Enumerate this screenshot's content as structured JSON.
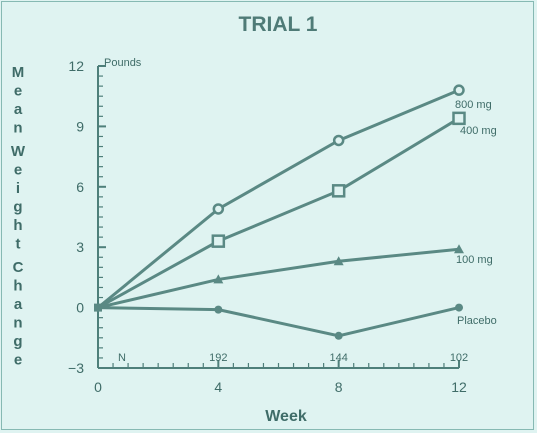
{
  "chart_data": {
    "type": "line",
    "title": "TRIAL 1",
    "xlabel": "Week",
    "ylabel": "Mean Weight Change",
    "yunit": "Pounds",
    "x": [
      0,
      4,
      8,
      12
    ],
    "xlim": [
      0,
      12
    ],
    "ylim": [
      -3,
      12
    ],
    "xticks": [
      0,
      4,
      8,
      12
    ],
    "yticks": [
      -3,
      0,
      3,
      6,
      9,
      12
    ],
    "series": [
      {
        "name": "800 mg",
        "marker": "circle-open",
        "values": [
          0,
          4.9,
          8.3,
          10.8
        ]
      },
      {
        "name": "400 mg",
        "marker": "square-open",
        "values": [
          0,
          3.3,
          5.8,
          9.4
        ]
      },
      {
        "name": "100 mg",
        "marker": "triangle",
        "values": [
          0,
          1.4,
          2.3,
          2.9
        ]
      },
      {
        "name": "Placebo",
        "marker": "dot",
        "values": [
          0,
          -0.1,
          -1.4,
          0
        ]
      }
    ],
    "n_label": "N",
    "n_values": [
      {
        "x": 4,
        "n": "192"
      },
      {
        "x": 8,
        "n": "144"
      },
      {
        "x": 12,
        "n": "102"
      }
    ],
    "grid": false,
    "legend": "inline labels at series ends",
    "colors": {
      "line": "#5a8984",
      "text": "#3f6c68",
      "background": "#dff3f1"
    }
  }
}
